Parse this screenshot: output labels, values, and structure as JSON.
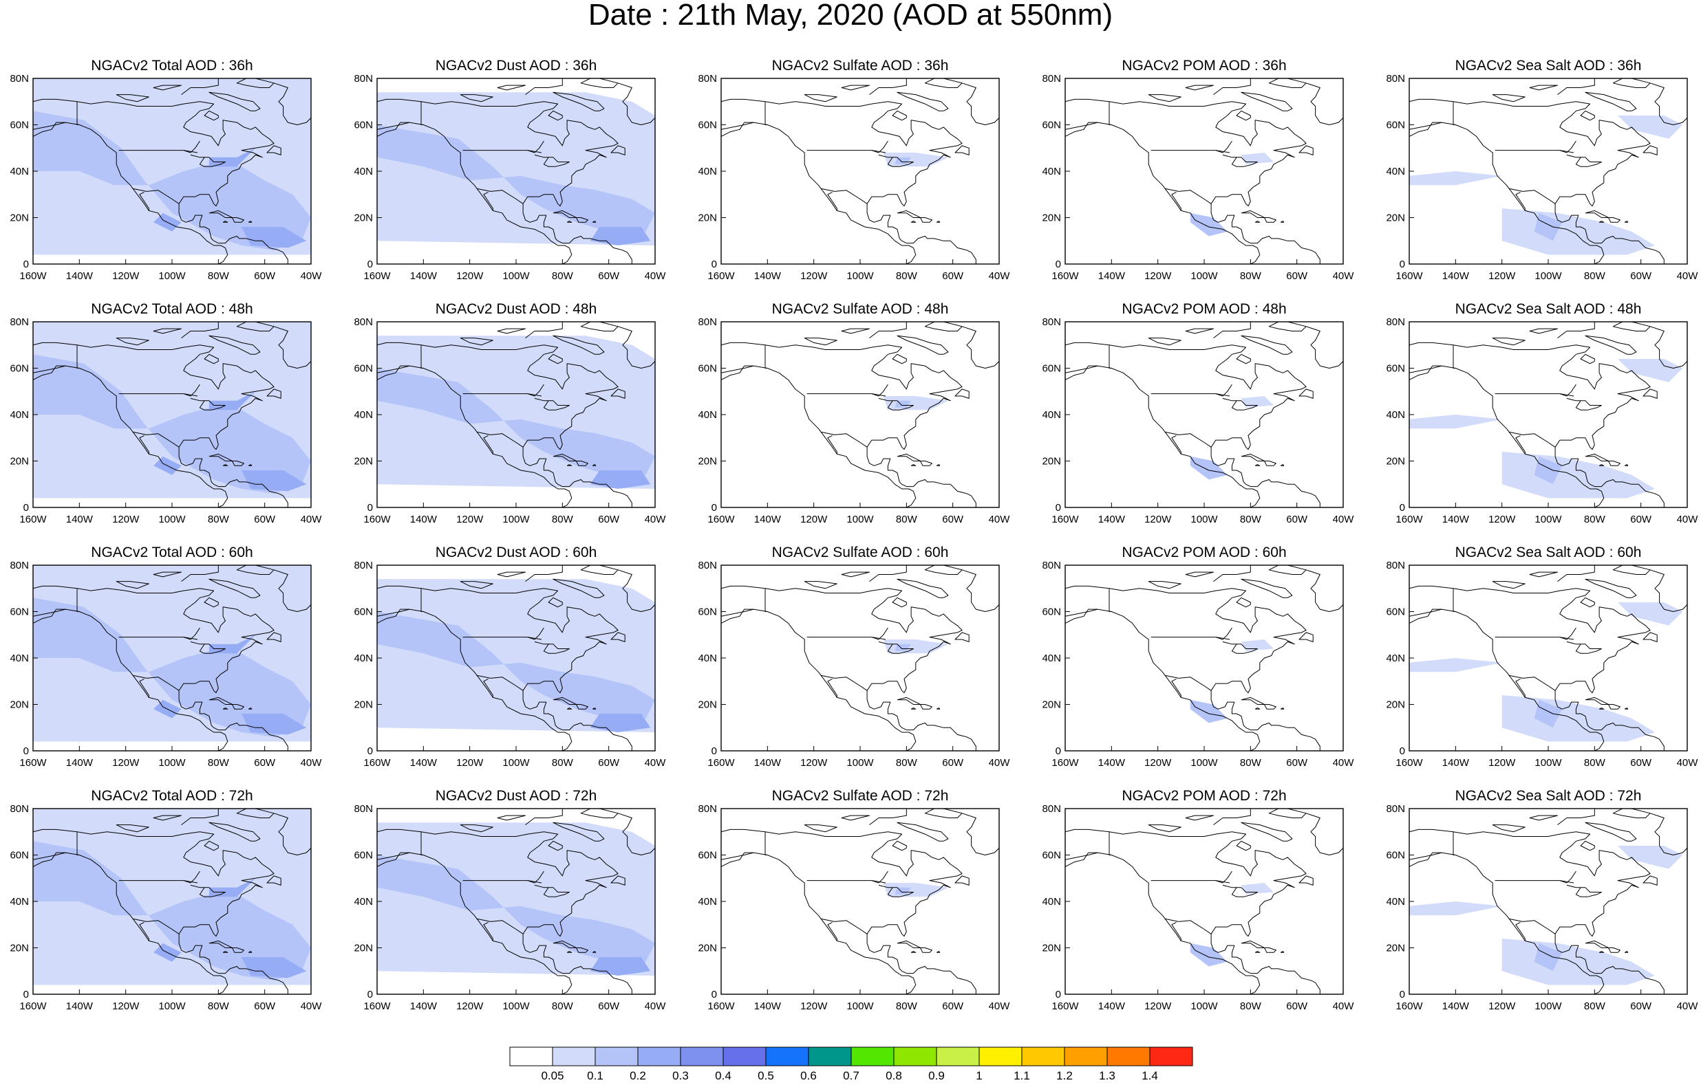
{
  "title": "Date : 21th May, 2020 (AOD at 550nm)",
  "lat_labels": [
    "0",
    "20N",
    "40N",
    "60N",
    "80N"
  ],
  "lon_labels": [
    "160W",
    "140W",
    "120W",
    "100W",
    "80W",
    "60W",
    "40W"
  ],
  "panels": [
    {
      "title": "NGACv2 Total AOD : 36h",
      "field": "total"
    },
    {
      "title": "NGACv2 Dust AOD : 36h",
      "field": "dust"
    },
    {
      "title": "NGACv2 Sulfate AOD : 36h",
      "field": "sulfate"
    },
    {
      "title": "NGACv2 POM AOD : 36h",
      "field": "pom"
    },
    {
      "title": "NGACv2 Sea Salt AOD : 36h",
      "field": "seasalt"
    },
    {
      "title": "NGACv2 Total AOD : 48h",
      "field": "total"
    },
    {
      "title": "NGACv2 Dust AOD : 48h",
      "field": "dust"
    },
    {
      "title": "NGACv2 Sulfate AOD : 48h",
      "field": "sulfate"
    },
    {
      "title": "NGACv2 POM AOD : 48h",
      "field": "pom"
    },
    {
      "title": "NGACv2 Sea Salt AOD : 48h",
      "field": "seasalt"
    },
    {
      "title": "NGACv2 Total AOD : 60h",
      "field": "total"
    },
    {
      "title": "NGACv2 Dust AOD : 60h",
      "field": "dust"
    },
    {
      "title": "NGACv2 Sulfate AOD : 60h",
      "field": "sulfate"
    },
    {
      "title": "NGACv2 POM AOD : 60h",
      "field": "pom"
    },
    {
      "title": "NGACv2 Sea Salt AOD : 60h",
      "field": "seasalt"
    },
    {
      "title": "NGACv2 Total AOD : 72h",
      "field": "total"
    },
    {
      "title": "NGACv2 Dust AOD : 72h",
      "field": "dust"
    },
    {
      "title": "NGACv2 Sulfate AOD : 72h",
      "field": "sulfate"
    },
    {
      "title": "NGACv2 POM AOD : 72h",
      "field": "pom"
    },
    {
      "title": "NGACv2 Sea Salt  AOD : 72h",
      "field": "seasalt"
    }
  ],
  "colorbar": {
    "colors": [
      "#ffffff",
      "#d2dcfa",
      "#b4c4f8",
      "#96acf5",
      "#7f91ef",
      "#6670ea",
      "#1473fa",
      "#00968c",
      "#52e600",
      "#8fe600",
      "#c8f046",
      "#fff000",
      "#ffc800",
      "#ffa000",
      "#ff7800",
      "#ff2814"
    ],
    "labels": [
      "0.05",
      "0.1",
      "0.2",
      "0.3",
      "0.4",
      "0.5",
      "0.6",
      "0.7",
      "0.8",
      "0.9",
      "1",
      "1.1",
      "1.2",
      "1.3",
      "1.4"
    ]
  },
  "colors": {
    "aod_light": "#d2dcfa",
    "aod_medium": "#b4c4f8",
    "aod_high": "#96acf5",
    "coastline": "#000000"
  }
}
